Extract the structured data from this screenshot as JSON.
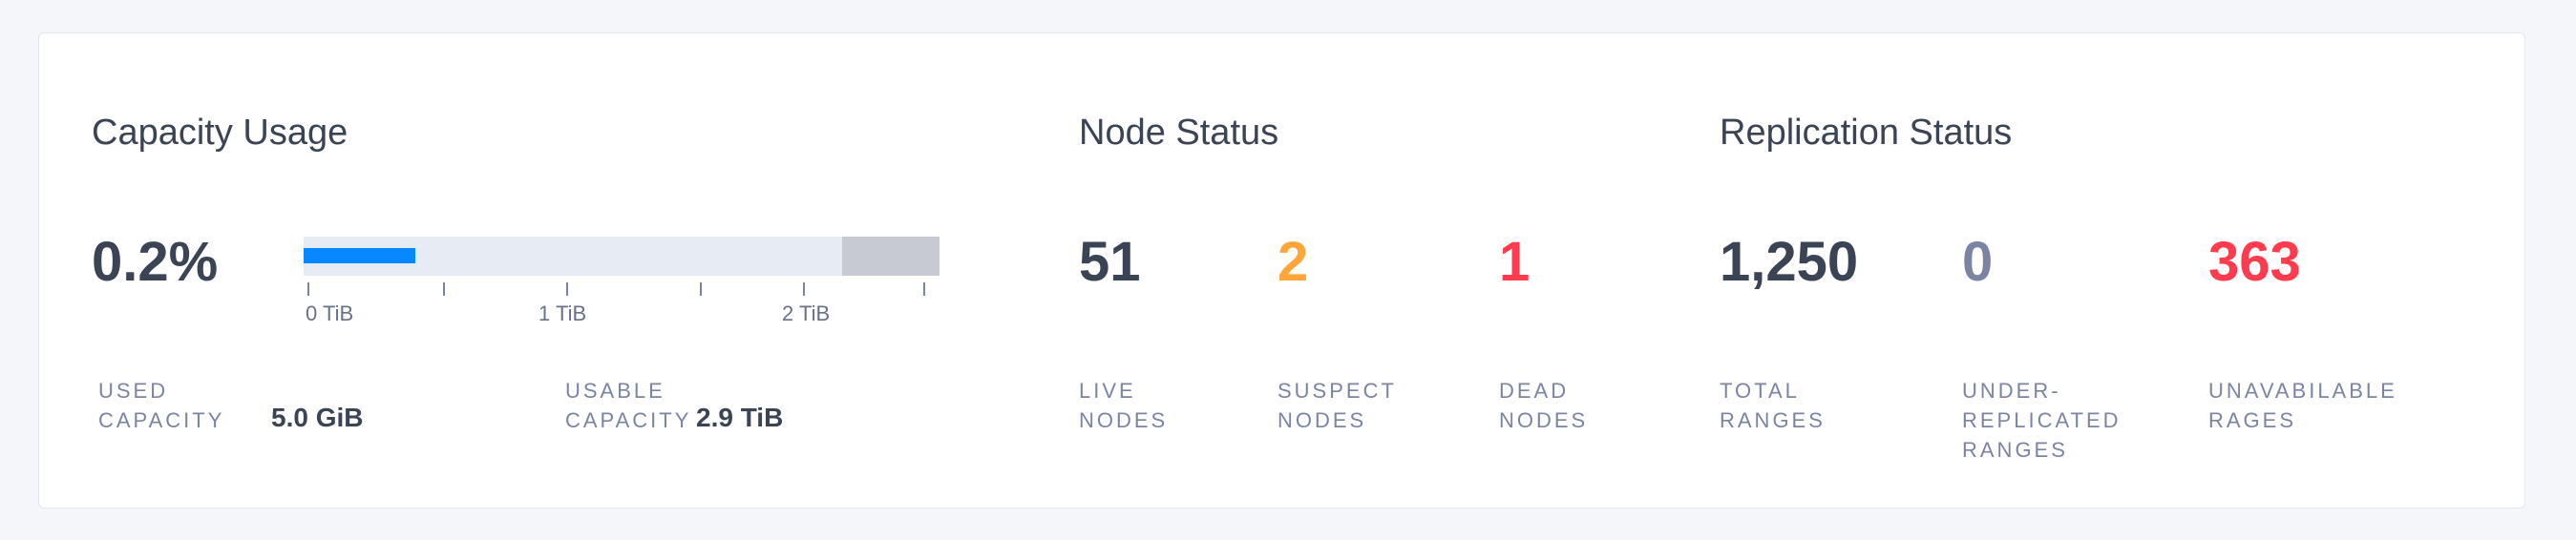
{
  "capacity": {
    "title": "Capacity Usage",
    "percent": "0.2%",
    "bar": {
      "used_fraction": 0.002,
      "fill_color": "#0788ff",
      "ticks": [
        "0 TiB",
        "1 TiB",
        "2 TiB"
      ]
    },
    "used_label": [
      "USED",
      "CAPACITY"
    ],
    "used_value": "5.0 GiB",
    "usable_label": [
      "USABLE",
      "CAPACITY"
    ],
    "usable_value": "2.9 TiB"
  },
  "node_status": {
    "title": "Node Status",
    "stats": [
      {
        "value": "51",
        "label": [
          "LIVE",
          "NODES"
        ],
        "color": "#3a4455"
      },
      {
        "value": "2",
        "label": [
          "SUSPECT",
          "NODES"
        ],
        "color": "#ffa53a"
      },
      {
        "value": "1",
        "label": [
          "DEAD",
          "NODES"
        ],
        "color": "#ff3b4e"
      }
    ]
  },
  "replication_status": {
    "title": "Replication Status",
    "stats": [
      {
        "value": "1,250",
        "label": [
          "TOTAL",
          "RANGES"
        ],
        "color": "#3a4455"
      },
      {
        "value": "0",
        "label": [
          "UNDER-",
          "REPLICATED",
          "RANGES"
        ],
        "color": "#7b85a3"
      },
      {
        "value": "363",
        "label": [
          "UNAVABILABLE",
          "RAGES"
        ],
        "color": "#ff3b4e"
      }
    ]
  }
}
